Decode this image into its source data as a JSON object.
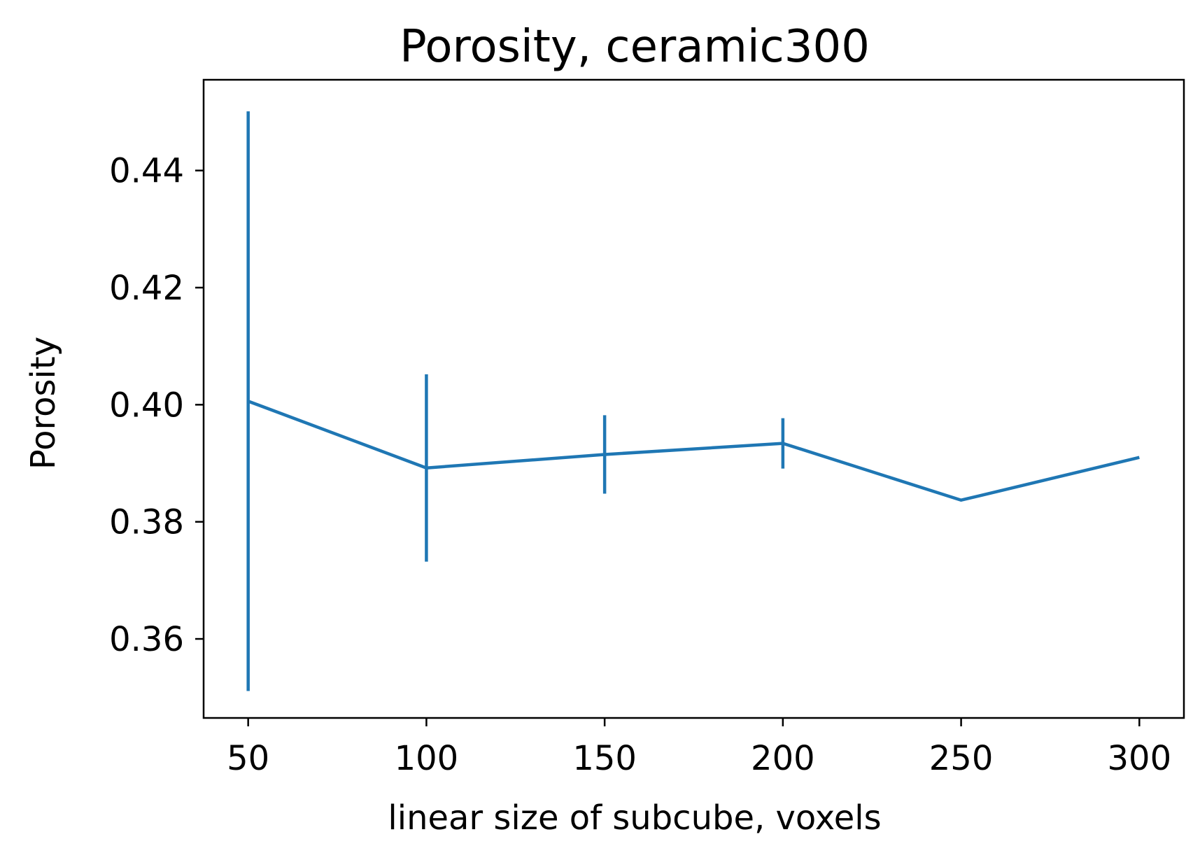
{
  "chart_data": {
    "type": "line",
    "title": "Porosity, ceramic300",
    "xlabel": "linear size of subcube, voxels",
    "ylabel": "Porosity",
    "xlim": [
      37.5,
      312.5
    ],
    "ylim": [
      0.3465,
      0.4555
    ],
    "xticks": [
      50,
      100,
      150,
      200,
      250,
      300
    ],
    "yticks": [
      0.36,
      0.38,
      0.4,
      0.42,
      0.44
    ],
    "grid": false,
    "legend": "none",
    "series": [
      {
        "color": "#1f77b4",
        "x": [
          50,
          100,
          150,
          200,
          250,
          300
        ],
        "y": [
          0.4006,
          0.3892,
          0.3915,
          0.3934,
          0.3837,
          0.391
        ],
        "yerr": [
          0.0495,
          0.016,
          0.0067,
          0.0043,
          0,
          0
        ]
      }
    ]
  }
}
